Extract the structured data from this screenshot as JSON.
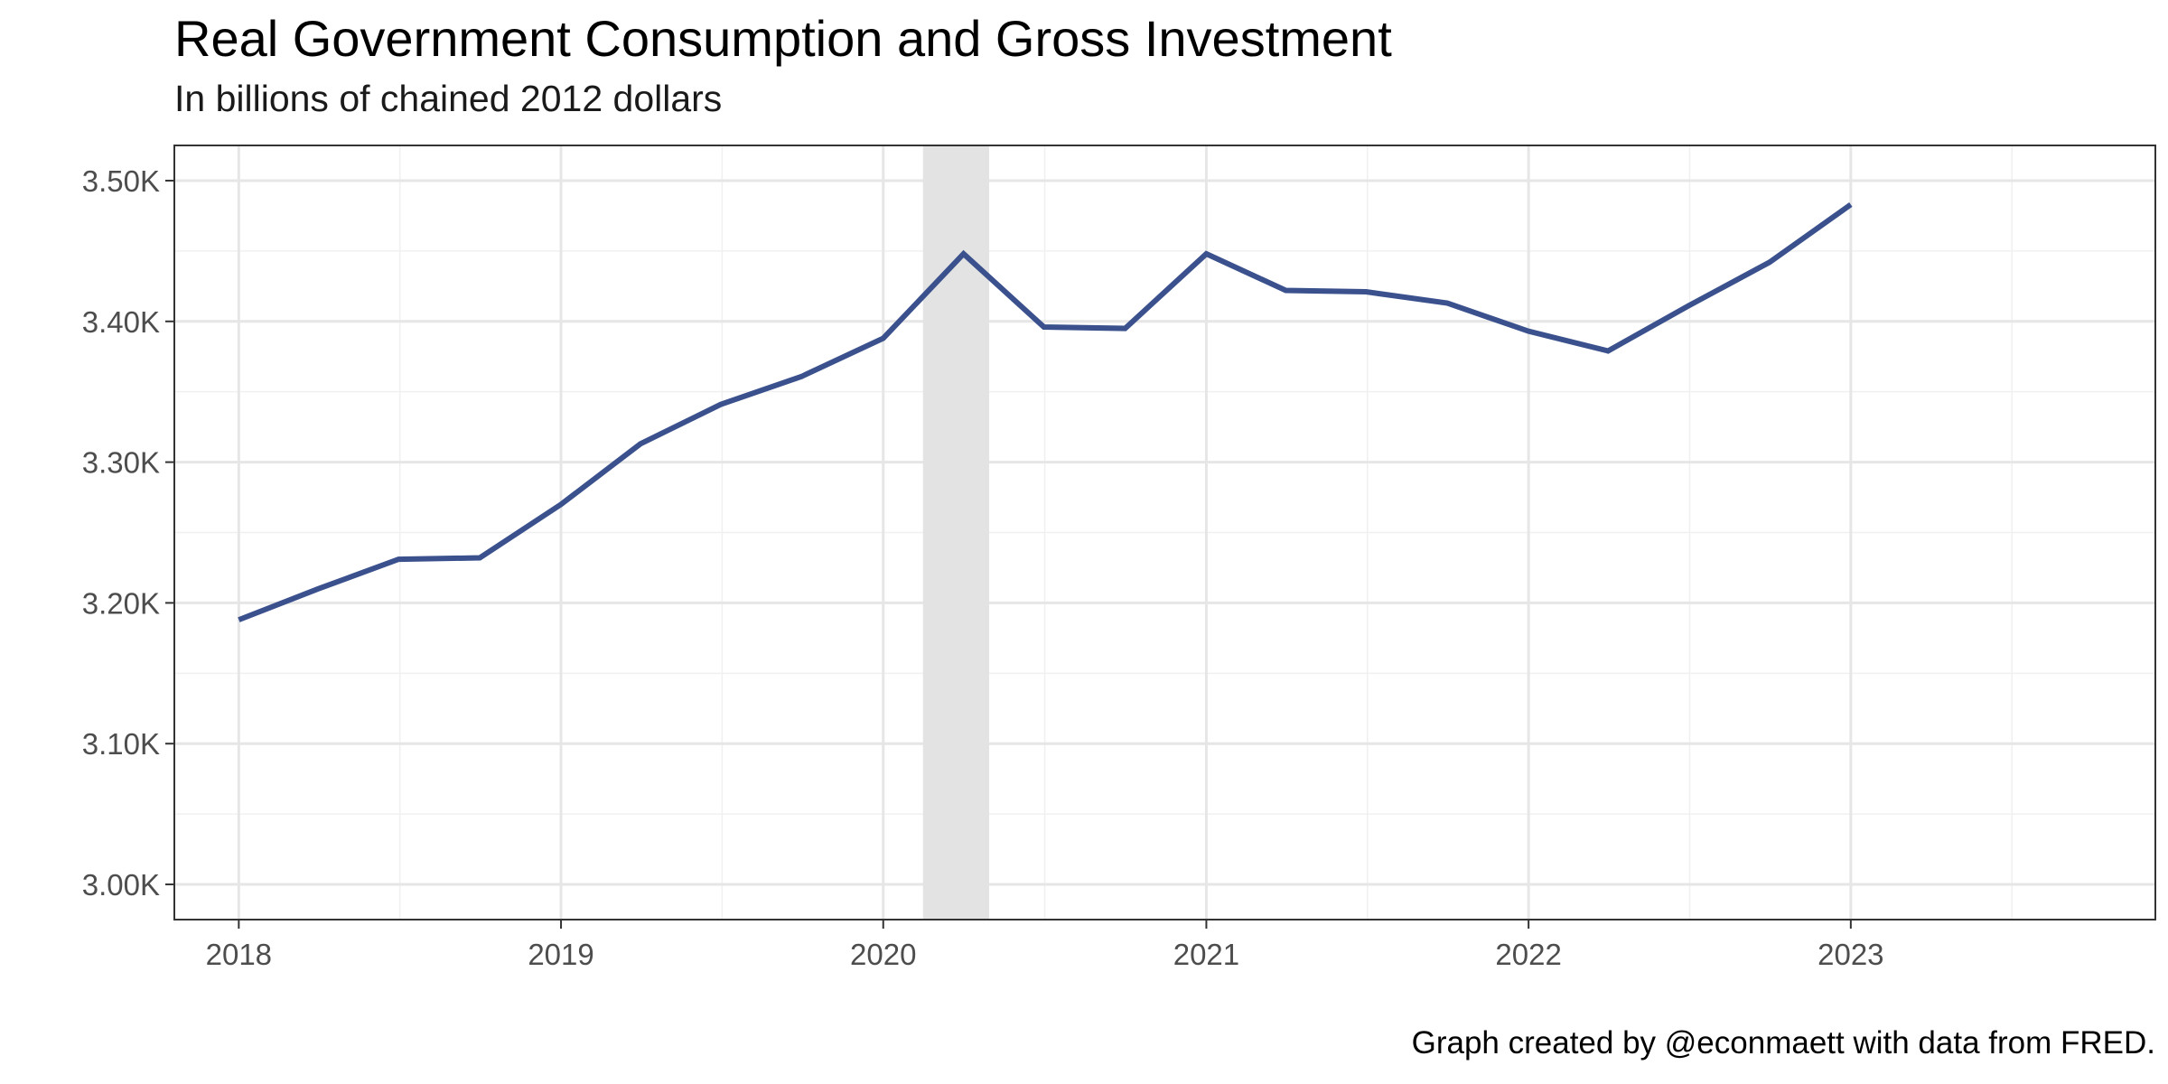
{
  "chart_data": {
    "type": "line",
    "title": "Real Government Consumption and Gross Investment",
    "subtitle": "In billions of chained 2012 dollars",
    "caption": "Graph created by @econmaett with data from FRED.",
    "xlabel": "",
    "ylabel": "",
    "x_axis": "date",
    "xlim": [
      "2017-10-20",
      "2023-12-12"
    ],
    "ylim": [
      2.975,
      3.525
    ],
    "y_unit_label": "K",
    "x_ticks": [
      {
        "date": "2018-01-01",
        "label": "2018"
      },
      {
        "date": "2019-01-01",
        "label": "2019"
      },
      {
        "date": "2020-01-01",
        "label": "2020"
      },
      {
        "date": "2021-01-01",
        "label": "2021"
      },
      {
        "date": "2022-01-01",
        "label": "2022"
      },
      {
        "date": "2023-01-01",
        "label": "2023"
      }
    ],
    "y_ticks": [
      {
        "value": 3.0,
        "label": "3.00K"
      },
      {
        "value": 3.1,
        "label": "3.10K"
      },
      {
        "value": 3.2,
        "label": "3.20K"
      },
      {
        "value": 3.3,
        "label": "3.30K"
      },
      {
        "value": 3.4,
        "label": "3.40K"
      },
      {
        "value": 3.5,
        "label": "3.50K"
      }
    ],
    "grid": true,
    "shaded_periods": [
      {
        "start": "2020-02-15",
        "end": "2020-04-30",
        "color": "#e3e3e3"
      }
    ],
    "series": [
      {
        "color": "#3a518d",
        "x": [
          "2018-01-01",
          "2018-04-01",
          "2018-07-01",
          "2018-10-01",
          "2019-01-01",
          "2019-04-01",
          "2019-07-01",
          "2019-10-01",
          "2020-01-01",
          "2020-04-01",
          "2020-07-01",
          "2020-10-01",
          "2021-01-01",
          "2021-04-01",
          "2021-07-01",
          "2021-10-01",
          "2022-01-01",
          "2022-04-01",
          "2022-07-01",
          "2022-10-01",
          "2023-01-01"
        ],
        "values": [
          3.188,
          3.21,
          3.231,
          3.232,
          3.27,
          3.313,
          3.341,
          3.361,
          3.388,
          3.448,
          3.396,
          3.395,
          3.448,
          3.422,
          3.421,
          3.413,
          3.393,
          3.379,
          3.411,
          3.442,
          3.483
        ]
      }
    ]
  }
}
